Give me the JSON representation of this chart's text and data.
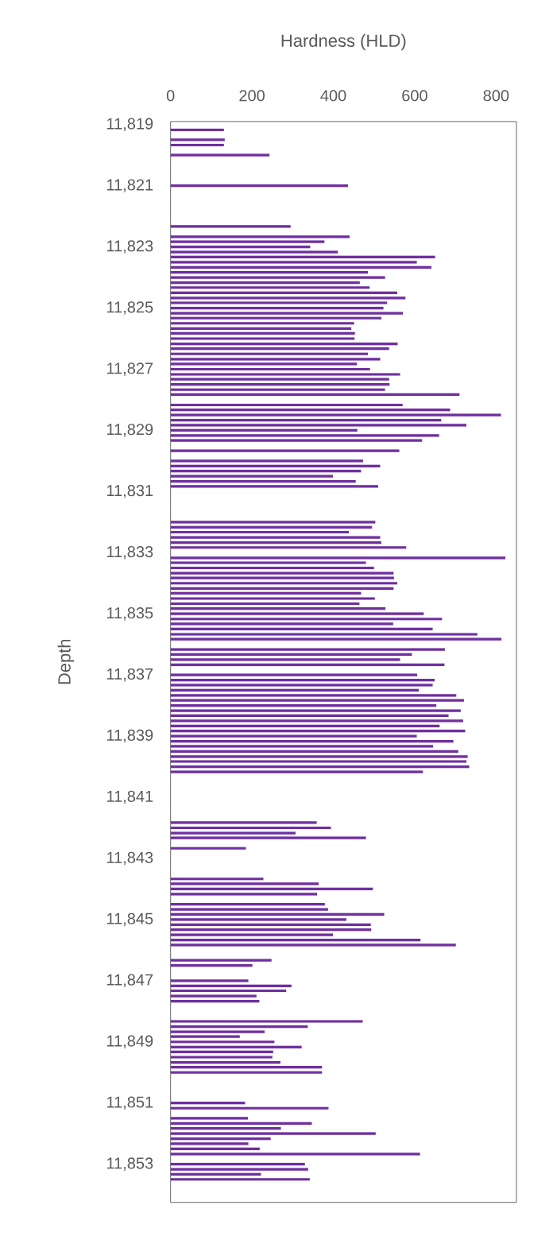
{
  "chart_data": {
    "type": "bar",
    "orientation": "horizontal",
    "xlabel": "Hardness (HLD)",
    "ylabel": "Depth",
    "color": "#7030a0",
    "x": [
      11819.17,
      11819.5,
      11819.67,
      11820,
      11821,
      11822.33,
      11822.67,
      11822.83,
      11823,
      11823.17,
      11823.33,
      11823.5,
      11823.67,
      11823.83,
      11824,
      11824.17,
      11824.33,
      11824.5,
      11824.67,
      11824.83,
      11825,
      11825.17,
      11825.33,
      11825.5,
      11825.67,
      11825.83,
      11826,
      11826.17,
      11826.33,
      11826.5,
      11826.67,
      11826.83,
      11827,
      11827.17,
      11827.33,
      11827.5,
      11827.67,
      11827.83,
      11828.17,
      11828.33,
      11828.5,
      11828.67,
      11828.83,
      11829,
      11829.17,
      11829.33,
      11829.67,
      11830,
      11830.17,
      11830.33,
      11830.5,
      11830.67,
      11830.83,
      11832,
      11832.17,
      11832.33,
      11832.5,
      11832.67,
      11832.83,
      11833.17,
      11833.33,
      11833.5,
      11833.67,
      11833.83,
      11834,
      11834.17,
      11834.33,
      11834.5,
      11834.67,
      11834.83,
      11835,
      11835.17,
      11835.33,
      11835.5,
      11835.67,
      11835.83,
      11836.17,
      11836.33,
      11836.5,
      11836.67,
      11837,
      11837.17,
      11837.33,
      11837.5,
      11837.67,
      11837.83,
      11838,
      11838.17,
      11838.33,
      11838.5,
      11838.67,
      11838.83,
      11839,
      11839.17,
      11839.33,
      11839.5,
      11839.67,
      11839.83,
      11840,
      11840.17,
      11841.83,
      11842,
      11842.17,
      11842.33,
      11842.67,
      11843.67,
      11843.83,
      11844,
      11844.17,
      11844.5,
      11844.67,
      11844.83,
      11845,
      11845.17,
      11845.33,
      11845.5,
      11845.67,
      11845.83,
      11846.33,
      11846.5,
      11847,
      11847.17,
      11847.33,
      11847.5,
      11847.67,
      11848.33,
      11848.5,
      11848.67,
      11848.83,
      11849,
      11849.17,
      11849.33,
      11849.5,
      11849.67,
      11849.83,
      11850,
      11851,
      11851.17,
      11851.5,
      11851.67,
      11851.83,
      11852,
      11852.17,
      11852.33,
      11852.5,
      11852.67,
      11853,
      11853.17,
      11853.33,
      11853.5
    ],
    "values": [
      131,
      133,
      131,
      243,
      436,
      295,
      440,
      378,
      343,
      411,
      650,
      605,
      641,
      485,
      527,
      465,
      489,
      557,
      577,
      532,
      523,
      571,
      518,
      451,
      444,
      453,
      452,
      558,
      537,
      485,
      515,
      458,
      490,
      564,
      537,
      538,
      527,
      710,
      570,
      687,
      812,
      665,
      727,
      459,
      660,
      618,
      562,
      473,
      515,
      468,
      399,
      455,
      510,
      503,
      495,
      438,
      515,
      518,
      579,
      823,
      480,
      500,
      548,
      549,
      557,
      548,
      468,
      502,
      464,
      528,
      622,
      667,
      547,
      644,
      754,
      813,
      674,
      593,
      564,
      673,
      606,
      649,
      644,
      610,
      702,
      721,
      653,
      713,
      683,
      719,
      661,
      724,
      605,
      695,
      645,
      707,
      730,
      727,
      734,
      620,
      359,
      394,
      307,
      480,
      185,
      228,
      364,
      497,
      360,
      379,
      387,
      525,
      432,
      492,
      493,
      399,
      614,
      701,
      248,
      201,
      191,
      297,
      284,
      211,
      218,
      472,
      337,
      231,
      170,
      255,
      322,
      252,
      250,
      270,
      372,
      372,
      183,
      388,
      190,
      347,
      271,
      504,
      246,
      191,
      219,
      613,
      330,
      338,
      222,
      342
    ],
    "xlim": [
      0,
      850
    ],
    "xticks": [
      0,
      200,
      400,
      600,
      800
    ],
    "ylim": [
      11854.25,
      11818.9
    ],
    "yticks": [
      {
        "value": 11819,
        "label": "11,819"
      },
      {
        "value": 11821,
        "label": "11,821"
      },
      {
        "value": 11823,
        "label": "11,823"
      },
      {
        "value": 11825,
        "label": "11,825"
      },
      {
        "value": 11827,
        "label": "11,827"
      },
      {
        "value": 11829,
        "label": "11,829"
      },
      {
        "value": 11831,
        "label": "11,831"
      },
      {
        "value": 11833,
        "label": "11,833"
      },
      {
        "value": 11835,
        "label": "11,835"
      },
      {
        "value": 11837,
        "label": "11,837"
      },
      {
        "value": 11839,
        "label": "11,839"
      },
      {
        "value": 11841,
        "label": "11,841"
      },
      {
        "value": 11843,
        "label": "11,843"
      },
      {
        "value": 11845,
        "label": "11,845"
      },
      {
        "value": 11847,
        "label": "11,847"
      },
      {
        "value": 11849,
        "label": "11,849"
      },
      {
        "value": 11851,
        "label": "11,851"
      },
      {
        "value": 11853,
        "label": "11,853"
      }
    ]
  }
}
